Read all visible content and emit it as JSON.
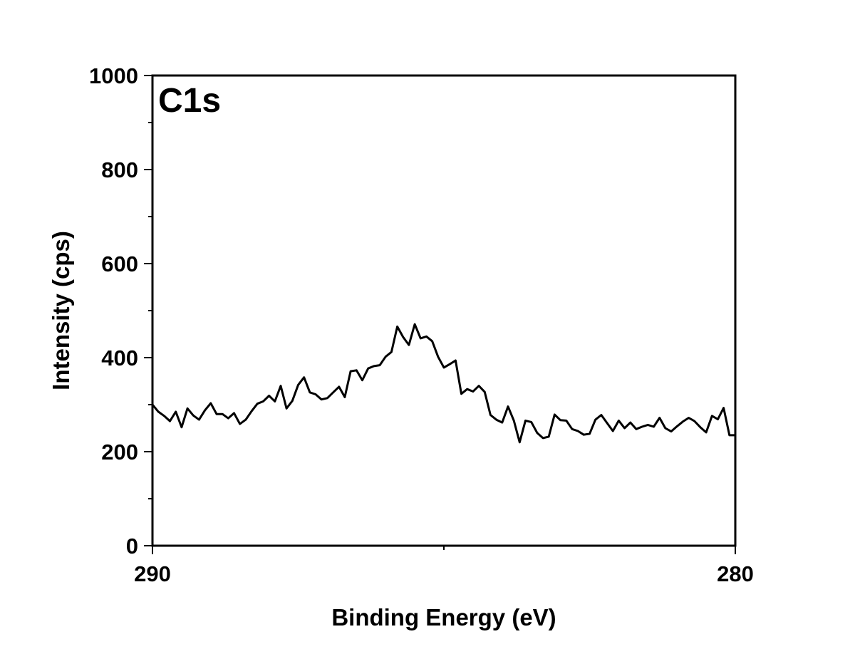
{
  "chart_data": {
    "type": "line",
    "title": "",
    "annotation": "C1s",
    "xlabel": "Binding Energy (eV)",
    "ylabel": "Intensity (cps)",
    "xlim": [
      290,
      280
    ],
    "ylim": [
      0,
      1000
    ],
    "x_reversed": true,
    "xticks": [
      290,
      280
    ],
    "xticks_minor": [
      285
    ],
    "yticks": [
      0,
      200,
      400,
      600,
      800,
      1000
    ],
    "yticks_minor": [
      100,
      300,
      500,
      700,
      900
    ],
    "grid": false,
    "legend": "none",
    "line_color": "#000000",
    "series": [
      {
        "x": [
          290.0,
          289.9,
          289.8,
          289.7,
          289.6,
          289.5,
          289.4,
          289.3,
          289.2,
          289.1,
          289.0,
          288.9,
          288.8,
          288.7,
          288.6,
          288.5,
          288.4,
          288.3,
          288.2,
          288.1,
          288.0,
          287.9,
          287.8,
          287.7,
          287.6,
          287.5,
          287.4,
          287.3,
          287.2,
          287.1,
          287.0,
          286.9,
          286.8,
          286.7,
          286.6,
          286.5,
          286.4,
          286.3,
          286.2,
          286.1,
          286.0,
          285.9,
          285.8,
          285.7,
          285.6,
          285.5,
          285.4,
          285.3,
          285.2,
          285.1,
          285.0,
          284.9,
          284.8,
          284.7,
          284.6,
          284.5,
          284.4,
          284.3,
          284.2,
          284.1,
          284.0,
          283.9,
          283.8,
          283.7,
          283.6,
          283.5,
          283.4,
          283.3,
          283.2,
          283.1,
          283.0,
          282.9,
          282.8,
          282.7,
          282.6,
          282.5,
          282.4,
          282.3,
          282.2,
          282.1,
          282.0,
          281.9,
          281.8,
          281.7,
          281.6,
          281.5,
          281.4,
          281.3,
          281.2,
          281.1,
          281.0,
          280.9,
          280.8,
          280.7,
          280.6,
          280.5,
          280.4,
          280.3,
          280.2,
          280.1,
          280.0
        ],
        "y": [
          300,
          285,
          276,
          265,
          285,
          252,
          292,
          277,
          268,
          288,
          303,
          280,
          280,
          271,
          282,
          259,
          268,
          286,
          302,
          307,
          319,
          307,
          340,
          292,
          308,
          342,
          358,
          326,
          322,
          311,
          314,
          326,
          338,
          316,
          371,
          373,
          352,
          377,
          382,
          384,
          402,
          412,
          466,
          444,
          427,
          471,
          441,
          445,
          435,
          402,
          379,
          386,
          394,
          323,
          333,
          328,
          340,
          327,
          278,
          268,
          262,
          296,
          266,
          220,
          266,
          263,
          240,
          229,
          232,
          279,
          267,
          266,
          248,
          244,
          236,
          238,
          268,
          278,
          261,
          244,
          266,
          250,
          262,
          248,
          253,
          257,
          253,
          272,
          250,
          243,
          254,
          264,
          272,
          265,
          252,
          241,
          276,
          269,
          293,
          235,
          235
        ]
      }
    ]
  }
}
